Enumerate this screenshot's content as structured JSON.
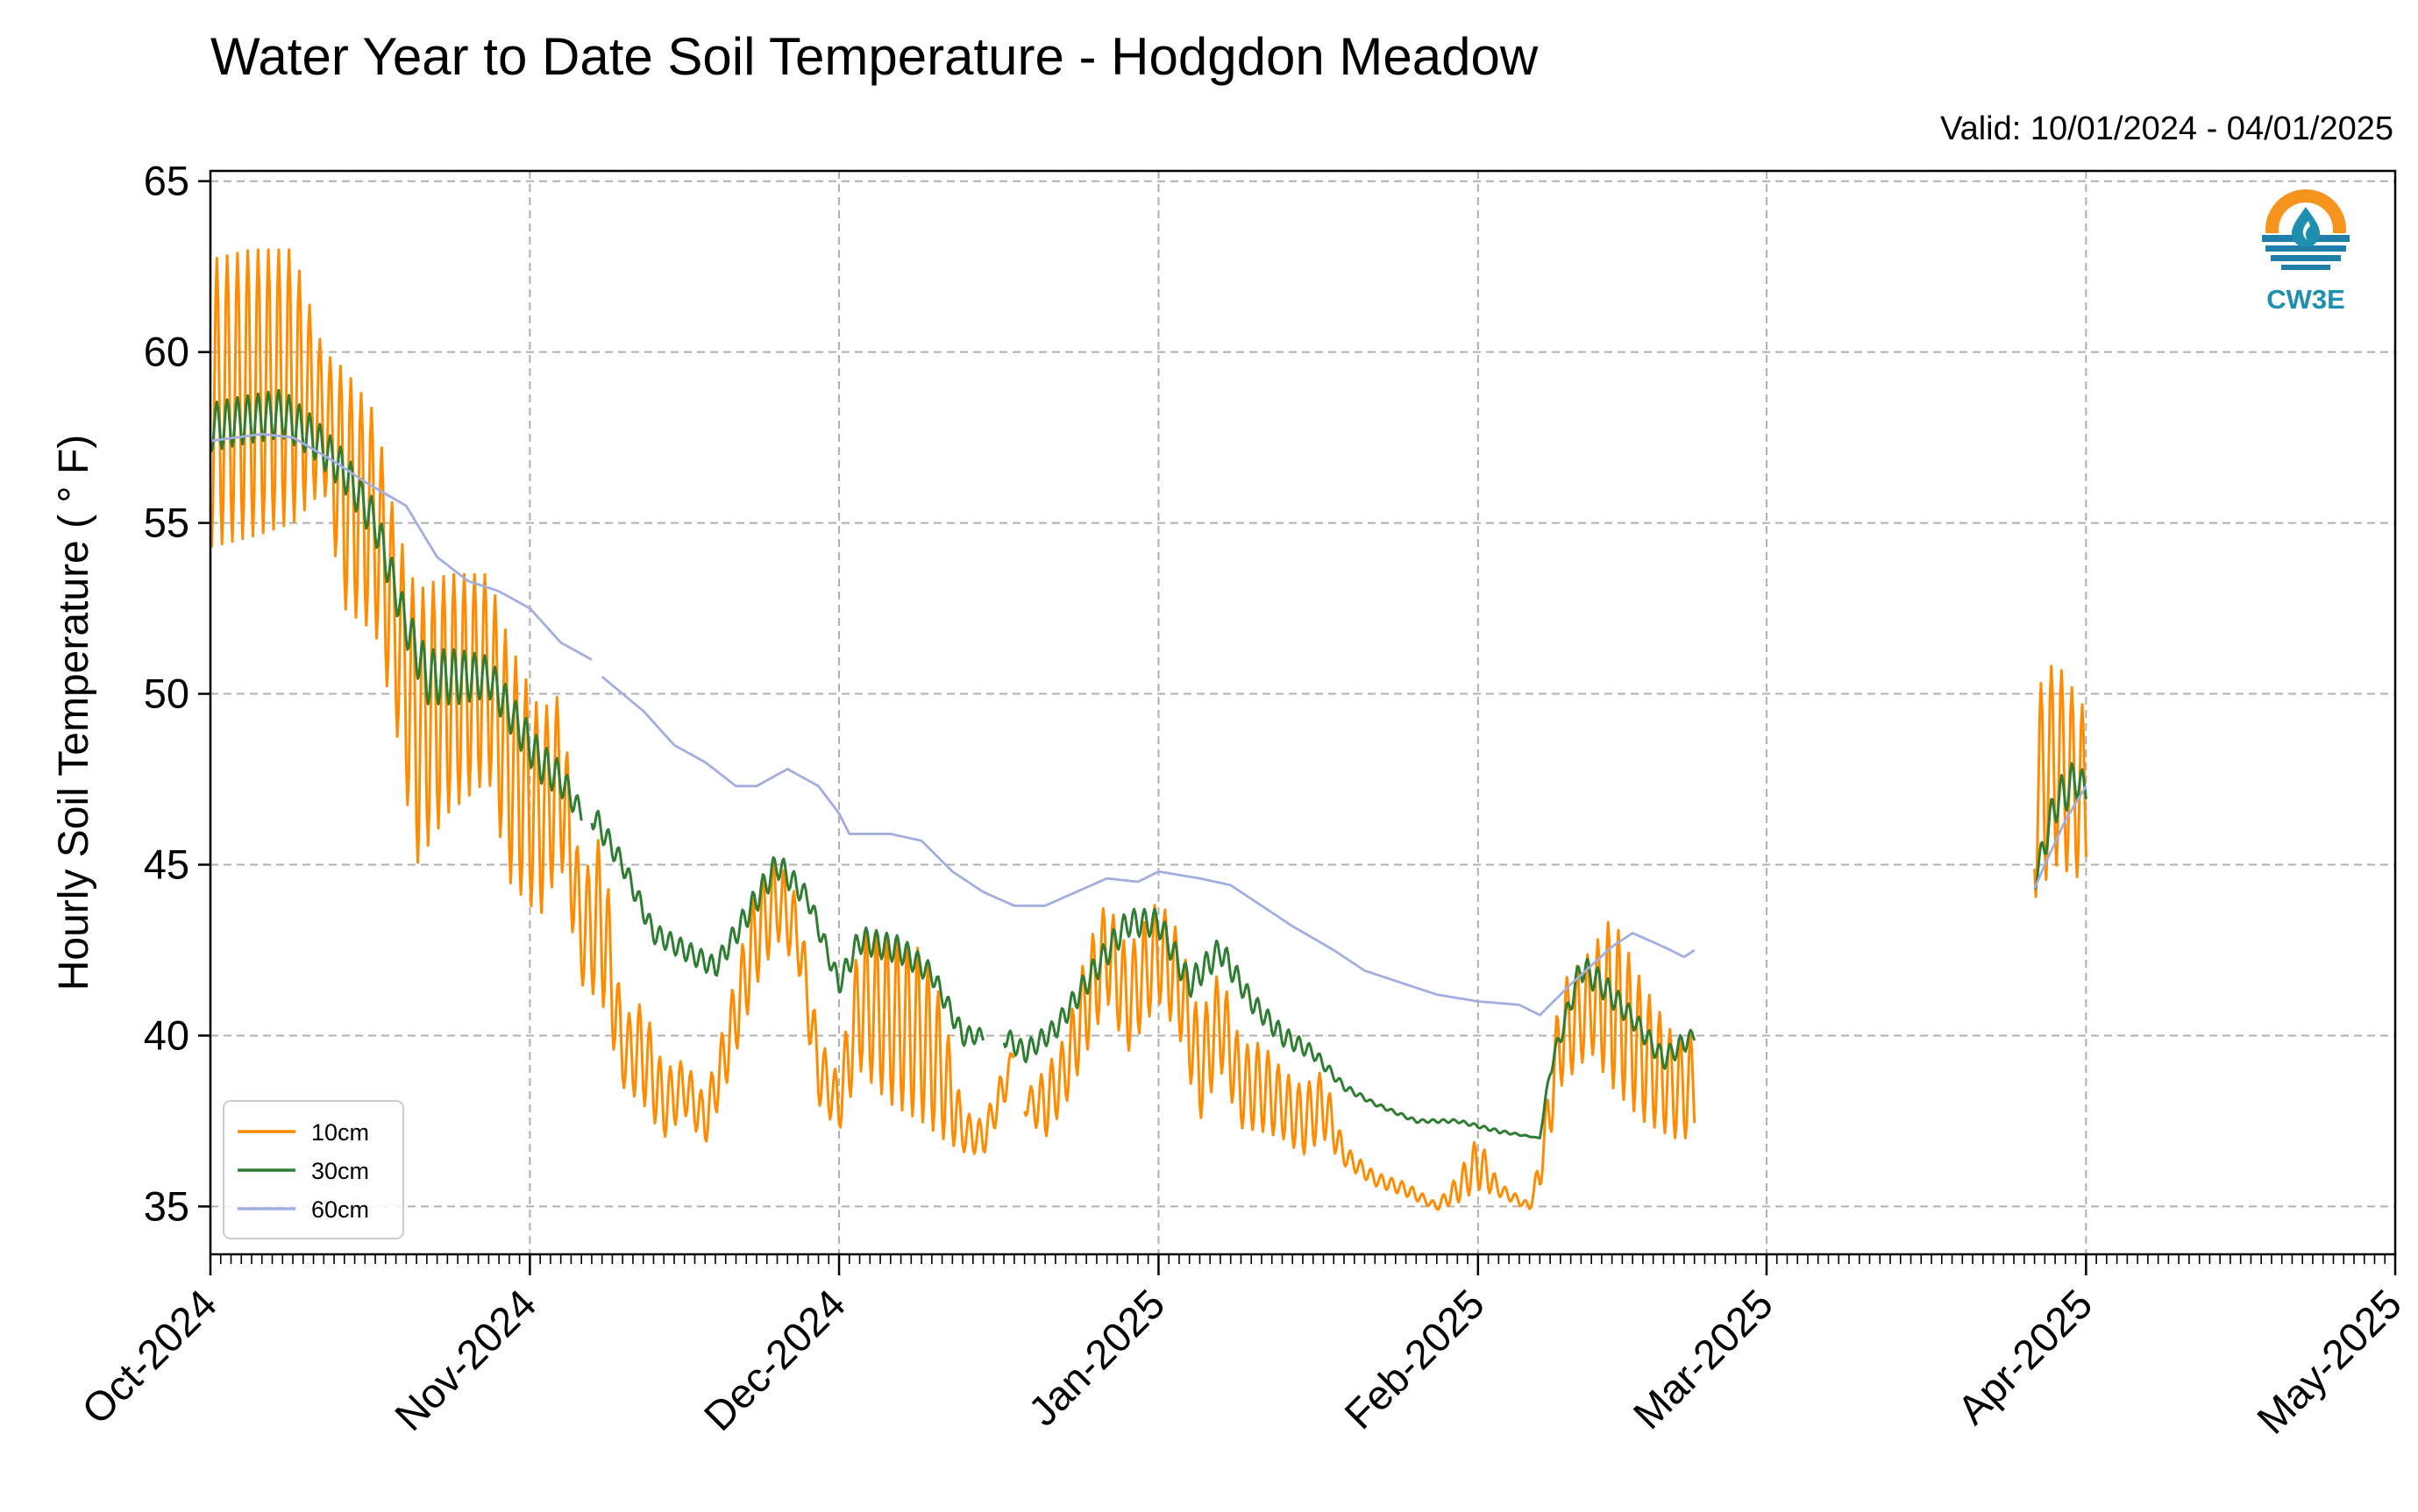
{
  "chart_data": {
    "type": "line",
    "title": "Water Year to Date Soil Temperature - Hodgdon Meadow",
    "subtitle": "Valid: 10/01/2024 - 04/01/2025",
    "xlabel": "",
    "ylabel": "Hourly Soil Temperature ( ° F)",
    "ylim": [
      33.6,
      65.3
    ],
    "xlim": [
      "2024-10-01",
      "2025-05-01"
    ],
    "yticks": [
      35,
      40,
      45,
      50,
      55,
      60,
      65
    ],
    "xticks": [
      "2024-10-01",
      "2024-11-01",
      "2024-12-01",
      "2025-01-01",
      "2025-02-01",
      "2025-03-01",
      "2025-04-01",
      "2025-05-01"
    ],
    "xticklabels": [
      "Oct-2024",
      "Nov-2024",
      "Dec-2024",
      "Jan-2025",
      "Feb-2025",
      "Mar-2025",
      "Apr-2025",
      "May-2025"
    ],
    "grid": true,
    "legend_position": "bottom-left",
    "logo": "CW3E",
    "series": [
      {
        "name": "10cm",
        "color": "#ff8c00",
        "daily_swing": true,
        "points": [
          {
            "x": "2024-10-01",
            "y": 58.5,
            "amp": 4.2
          },
          {
            "x": "2024-10-05",
            "y": 58.8,
            "amp": 4.2
          },
          {
            "x": "2024-10-09",
            "y": 59.0,
            "amp": 4.0
          },
          {
            "x": "2024-10-12",
            "y": 58.0,
            "amp": 2.0
          },
          {
            "x": "2024-10-14",
            "y": 56.0,
            "amp": 3.5
          },
          {
            "x": "2024-10-17",
            "y": 55.0,
            "amp": 3.2
          },
          {
            "x": "2024-10-19",
            "y": 52.0,
            "amp": 3.0
          },
          {
            "x": "2024-10-21",
            "y": 49.0,
            "amp": 4.0
          },
          {
            "x": "2024-10-24",
            "y": 50.0,
            "amp": 3.5
          },
          {
            "x": "2024-10-28",
            "y": 50.5,
            "amp": 3.0
          },
          {
            "x": "2024-10-30",
            "y": 48.0,
            "amp": 3.5
          },
          {
            "x": "2024-11-02",
            "y": 46.5,
            "amp": 3.0
          },
          {
            "x": "2024-11-04",
            "y": 47.5,
            "amp": 2.5
          },
          {
            "x": "2024-11-06",
            "y": 43.0,
            "amp": 1.5
          },
          {
            "x": "2024-11-08",
            "y": 43.5,
            "amp": 2.5
          },
          {
            "x": "2024-11-10",
            "y": 39.5,
            "amp": 1.0
          },
          {
            "x": "2024-11-12",
            "y": 39.5,
            "amp": 1.5
          },
          {
            "x": "2024-11-14",
            "y": 38.0,
            "amp": 1.0
          },
          {
            "x": "2024-11-16",
            "y": 38.5,
            "amp": 0.8
          },
          {
            "x": "2024-11-18",
            "y": 37.5,
            "amp": 0.7
          },
          {
            "x": "2024-11-20",
            "y": 39.5,
            "amp": 1.0
          },
          {
            "x": "2024-11-23",
            "y": 43.0,
            "amp": 1.5
          },
          {
            "x": "2024-11-25",
            "y": 44.0,
            "amp": 1.2
          },
          {
            "x": "2024-11-27",
            "y": 43.0,
            "amp": 1.0
          },
          {
            "x": "2024-11-29",
            "y": 39.0,
            "amp": 1.0
          },
          {
            "x": "2024-12-01",
            "y": 38.0,
            "amp": 0.8
          },
          {
            "x": "2024-12-03",
            "y": 41.0,
            "amp": 2.0
          },
          {
            "x": "2024-12-06",
            "y": 40.5,
            "amp": 2.5
          },
          {
            "x": "2024-12-09",
            "y": 40.0,
            "amp": 2.5
          },
          {
            "x": "2024-12-11",
            "y": 39.0,
            "amp": 2.0
          },
          {
            "x": "2024-12-13",
            "y": 37.2,
            "amp": 0.6
          },
          {
            "x": "2024-12-15",
            "y": 37.0,
            "amp": 0.5
          },
          {
            "x": "2024-12-17",
            "y": 38.5,
            "amp": 0.6
          },
          {
            "x": "2024-12-18",
            "y": 39.5,
            "amp": 0.2
          },
          {
            "x": "2024-12-18",
            "y": null
          },
          {
            "x": "2024-12-19",
            "y": 38.0,
            "amp": 0.3
          },
          {
            "x": "2024-12-21",
            "y": 38.0,
            "amp": 1.0
          },
          {
            "x": "2024-12-23",
            "y": 39.0,
            "amp": 1.0
          },
          {
            "x": "2024-12-25",
            "y": 41.0,
            "amp": 1.5
          },
          {
            "x": "2024-12-27",
            "y": 42.5,
            "amp": 1.5
          },
          {
            "x": "2024-12-29",
            "y": 41.0,
            "amp": 1.5
          },
          {
            "x": "2025-01-01",
            "y": 42.5,
            "amp": 1.5
          },
          {
            "x": "2025-01-03",
            "y": 41.5,
            "amp": 1.5
          },
          {
            "x": "2025-01-05",
            "y": 39.0,
            "amp": 1.5
          },
          {
            "x": "2025-01-07",
            "y": 40.5,
            "amp": 1.5
          },
          {
            "x": "2025-01-09",
            "y": 38.5,
            "amp": 1.2
          },
          {
            "x": "2025-01-11",
            "y": 38.5,
            "amp": 1.3
          },
          {
            "x": "2025-01-13",
            "y": 38.0,
            "amp": 1.0
          },
          {
            "x": "2025-01-15",
            "y": 37.5,
            "amp": 1.0
          },
          {
            "x": "2025-01-17",
            "y": 38.0,
            "amp": 1.0
          },
          {
            "x": "2025-01-19",
            "y": 36.5,
            "amp": 0.3
          },
          {
            "x": "2025-01-22",
            "y": 35.8,
            "amp": 0.2
          },
          {
            "x": "2025-01-25",
            "y": 35.5,
            "amp": 0.2
          },
          {
            "x": "2025-01-28",
            "y": 35.0,
            "amp": 0.1
          },
          {
            "x": "2025-01-30",
            "y": 35.5,
            "amp": 0.4
          },
          {
            "x": "2025-02-01",
            "y": 36.3,
            "amp": 0.8
          },
          {
            "x": "2025-02-03",
            "y": 35.5,
            "amp": 0.2
          },
          {
            "x": "2025-02-06",
            "y": 35.0,
            "amp": 0.1
          },
          {
            "x": "2025-02-07",
            "y": 36.0,
            "amp": 0.5
          },
          {
            "x": "2025-02-09",
            "y": 40.0,
            "amp": 1.5
          },
          {
            "x": "2025-02-12",
            "y": 41.0,
            "amp": 1.5
          },
          {
            "x": "2025-02-14",
            "y": 41.0,
            "amp": 2.5
          },
          {
            "x": "2025-02-17",
            "y": 39.5,
            "amp": 2.0
          },
          {
            "x": "2025-02-20",
            "y": 38.5,
            "amp": 1.5
          },
          {
            "x": "2025-02-22",
            "y": 38.5,
            "amp": 1.5
          },
          {
            "x": "2025-02-22",
            "y": null
          },
          {
            "x": "2025-03-27",
            "y": 47.0,
            "amp": 3.0
          },
          {
            "x": "2025-03-29",
            "y": 48.0,
            "amp": 3.0
          },
          {
            "x": "2025-04-01",
            "y": 47.0,
            "amp": 2.5
          },
          {
            "x": "2025-04-01",
            "y": 45.0,
            "amp": 0.1
          }
        ]
      },
      {
        "name": "30cm",
        "color": "#2e7d32",
        "daily_swing": true,
        "points": [
          {
            "x": "2024-10-01",
            "y": 57.8,
            "amp": 0.7
          },
          {
            "x": "2024-10-04",
            "y": 58.0,
            "amp": 0.7
          },
          {
            "x": "2024-10-08",
            "y": 58.2,
            "amp": 0.7
          },
          {
            "x": "2024-10-11",
            "y": 57.5,
            "amp": 0.6
          },
          {
            "x": "2024-10-14",
            "y": 56.5,
            "amp": 0.6
          },
          {
            "x": "2024-10-17",
            "y": 55.0,
            "amp": 0.6
          },
          {
            "x": "2024-10-20",
            "y": 52.0,
            "amp": 0.6
          },
          {
            "x": "2024-10-22",
            "y": 50.5,
            "amp": 0.8
          },
          {
            "x": "2024-10-25",
            "y": 50.5,
            "amp": 0.8
          },
          {
            "x": "2024-10-28",
            "y": 50.5,
            "amp": 0.6
          },
          {
            "x": "2024-10-31",
            "y": 49.0,
            "amp": 0.6
          },
          {
            "x": "2024-11-02",
            "y": 48.0,
            "amp": 0.6
          },
          {
            "x": "2024-11-04",
            "y": 47.5,
            "amp": 0.5
          },
          {
            "x": "2024-11-06",
            "y": 46.5,
            "amp": 0.3
          },
          {
            "x": "2024-11-06",
            "y": null
          },
          {
            "x": "2024-11-07",
            "y": 46.5,
            "amp": 0.4
          },
          {
            "x": "2024-11-10",
            "y": 45.0,
            "amp": 0.3
          },
          {
            "x": "2024-11-13",
            "y": 43.0,
            "amp": 0.3
          },
          {
            "x": "2024-11-16",
            "y": 42.5,
            "amp": 0.3
          },
          {
            "x": "2024-11-19",
            "y": 42.0,
            "amp": 0.3
          },
          {
            "x": "2024-11-23",
            "y": 44.0,
            "amp": 0.4
          },
          {
            "x": "2024-11-25",
            "y": 45.0,
            "amp": 0.4
          },
          {
            "x": "2024-11-28",
            "y": 44.0,
            "amp": 0.3
          },
          {
            "x": "2024-12-01",
            "y": 41.5,
            "amp": 0.3
          },
          {
            "x": "2024-12-03",
            "y": 42.8,
            "amp": 0.4
          },
          {
            "x": "2024-12-07",
            "y": 42.5,
            "amp": 0.4
          },
          {
            "x": "2024-12-10",
            "y": 41.8,
            "amp": 0.3
          },
          {
            "x": "2024-12-13",
            "y": 40.0,
            "amp": 0.3
          },
          {
            "x": "2024-12-15",
            "y": 40.0,
            "amp": 0.2
          },
          {
            "x": "2024-12-15",
            "y": null
          },
          {
            "x": "2024-12-17",
            "y": 40.0,
            "amp": 0.3
          },
          {
            "x": "2024-12-19",
            "y": 39.5,
            "amp": 0.3
          },
          {
            "x": "2024-12-22",
            "y": 40.2,
            "amp": 0.3
          },
          {
            "x": "2024-12-26",
            "y": 42.0,
            "amp": 0.4
          },
          {
            "x": "2024-12-29",
            "y": 43.3,
            "amp": 0.4
          },
          {
            "x": "2025-01-01",
            "y": 43.3,
            "amp": 0.4
          },
          {
            "x": "2025-01-04",
            "y": 41.5,
            "amp": 0.4
          },
          {
            "x": "2025-01-07",
            "y": 42.5,
            "amp": 0.4
          },
          {
            "x": "2025-01-10",
            "y": 41.0,
            "amp": 0.3
          },
          {
            "x": "2025-01-13",
            "y": 40.0,
            "amp": 0.3
          },
          {
            "x": "2025-01-16",
            "y": 39.5,
            "amp": 0.2
          },
          {
            "x": "2025-01-19",
            "y": 38.5,
            "amp": 0.1
          },
          {
            "x": "2025-01-22",
            "y": 38.0,
            "amp": 0.05
          },
          {
            "x": "2025-01-26",
            "y": 37.5,
            "amp": 0.05
          },
          {
            "x": "2025-01-30",
            "y": 37.5,
            "amp": 0.05
          },
          {
            "x": "2025-02-03",
            "y": 37.2,
            "amp": 0.05
          },
          {
            "x": "2025-02-07",
            "y": 37.0,
            "amp": 0.0
          },
          {
            "x": "2025-02-08",
            "y": 39.0,
            "amp": 0.2
          },
          {
            "x": "2025-02-11",
            "y": 42.0,
            "amp": 0.4
          },
          {
            "x": "2025-02-13",
            "y": 41.5,
            "amp": 0.4
          },
          {
            "x": "2025-02-16",
            "y": 40.5,
            "amp": 0.3
          },
          {
            "x": "2025-02-19",
            "y": 39.3,
            "amp": 0.3
          },
          {
            "x": "2025-02-21",
            "y": 39.8,
            "amp": 0.3
          },
          {
            "x": "2025-02-22",
            "y": 40.0,
            "amp": 0.2
          },
          {
            "x": "2025-02-22",
            "y": null
          },
          {
            "x": "2025-03-27",
            "y": 44.5,
            "amp": 0.3
          },
          {
            "x": "2025-03-29",
            "y": 46.8,
            "amp": 0.6
          },
          {
            "x": "2025-03-31",
            "y": 47.5,
            "amp": 0.6
          },
          {
            "x": "2025-04-01",
            "y": 47.2,
            "amp": 0.4
          }
        ]
      },
      {
        "name": "60cm",
        "color": "#a3aee0",
        "daily_swing": false,
        "points": [
          {
            "x": "2024-10-01",
            "y": 57.4
          },
          {
            "x": "2024-10-06",
            "y": 57.6
          },
          {
            "x": "2024-10-09",
            "y": 57.5
          },
          {
            "x": "2024-10-13",
            "y": 56.8
          },
          {
            "x": "2024-10-16",
            "y": 56.2
          },
          {
            "x": "2024-10-20",
            "y": 55.5
          },
          {
            "x": "2024-10-23",
            "y": 54.0
          },
          {
            "x": "2024-10-26",
            "y": 53.3
          },
          {
            "x": "2024-10-29",
            "y": 53.0
          },
          {
            "x": "2024-11-01",
            "y": 52.5
          },
          {
            "x": "2024-11-04",
            "y": 51.5
          },
          {
            "x": "2024-11-07",
            "y": 51.0
          },
          {
            "x": "2024-11-07",
            "y": null
          },
          {
            "x": "2024-11-08",
            "y": 50.5
          },
          {
            "x": "2024-11-12",
            "y": 49.5
          },
          {
            "x": "2024-11-15",
            "y": 48.5
          },
          {
            "x": "2024-11-18",
            "y": 48.0
          },
          {
            "x": "2024-11-21",
            "y": 47.3
          },
          {
            "x": "2024-11-23",
            "y": 47.3
          },
          {
            "x": "2024-11-26",
            "y": 47.8
          },
          {
            "x": "2024-11-29",
            "y": 47.3
          },
          {
            "x": "2024-12-01",
            "y": 46.5
          },
          {
            "x": "2024-12-02",
            "y": 45.9
          },
          {
            "x": "2024-12-06",
            "y": 45.9
          },
          {
            "x": "2024-12-09",
            "y": 45.7
          },
          {
            "x": "2024-12-12",
            "y": 44.8
          },
          {
            "x": "2024-12-15",
            "y": 44.2
          },
          {
            "x": "2024-12-18",
            "y": 43.8
          },
          {
            "x": "2024-12-21",
            "y": 43.8
          },
          {
            "x": "2024-12-24",
            "y": 44.2
          },
          {
            "x": "2024-12-27",
            "y": 44.6
          },
          {
            "x": "2024-12-30",
            "y": 44.5
          },
          {
            "x": "2025-01-01",
            "y": 44.8
          },
          {
            "x": "2025-01-05",
            "y": 44.6
          },
          {
            "x": "2025-01-08",
            "y": 44.4
          },
          {
            "x": "2025-01-11",
            "y": 43.8
          },
          {
            "x": "2025-01-14",
            "y": 43.2
          },
          {
            "x": "2025-01-18",
            "y": 42.5
          },
          {
            "x": "2025-01-21",
            "y": 41.9
          },
          {
            "x": "2025-01-25",
            "y": 41.5
          },
          {
            "x": "2025-01-28",
            "y": 41.2
          },
          {
            "x": "2025-02-01",
            "y": 41.0
          },
          {
            "x": "2025-02-05",
            "y": 40.9
          },
          {
            "x": "2025-02-07",
            "y": 40.6
          },
          {
            "x": "2025-02-10",
            "y": 41.5
          },
          {
            "x": "2025-02-14",
            "y": 42.6
          },
          {
            "x": "2025-02-16",
            "y": 43.0
          },
          {
            "x": "2025-02-19",
            "y": 42.6
          },
          {
            "x": "2025-02-21",
            "y": 42.3
          },
          {
            "x": "2025-02-22",
            "y": 42.5
          },
          {
            "x": "2025-02-22",
            "y": null
          },
          {
            "x": "2025-03-27",
            "y": 44.3
          },
          {
            "x": "2025-03-28",
            "y": 45.0
          },
          {
            "x": "2025-03-30",
            "y": 46.3
          },
          {
            "x": "2025-04-01",
            "y": 47.3
          }
        ]
      }
    ]
  }
}
